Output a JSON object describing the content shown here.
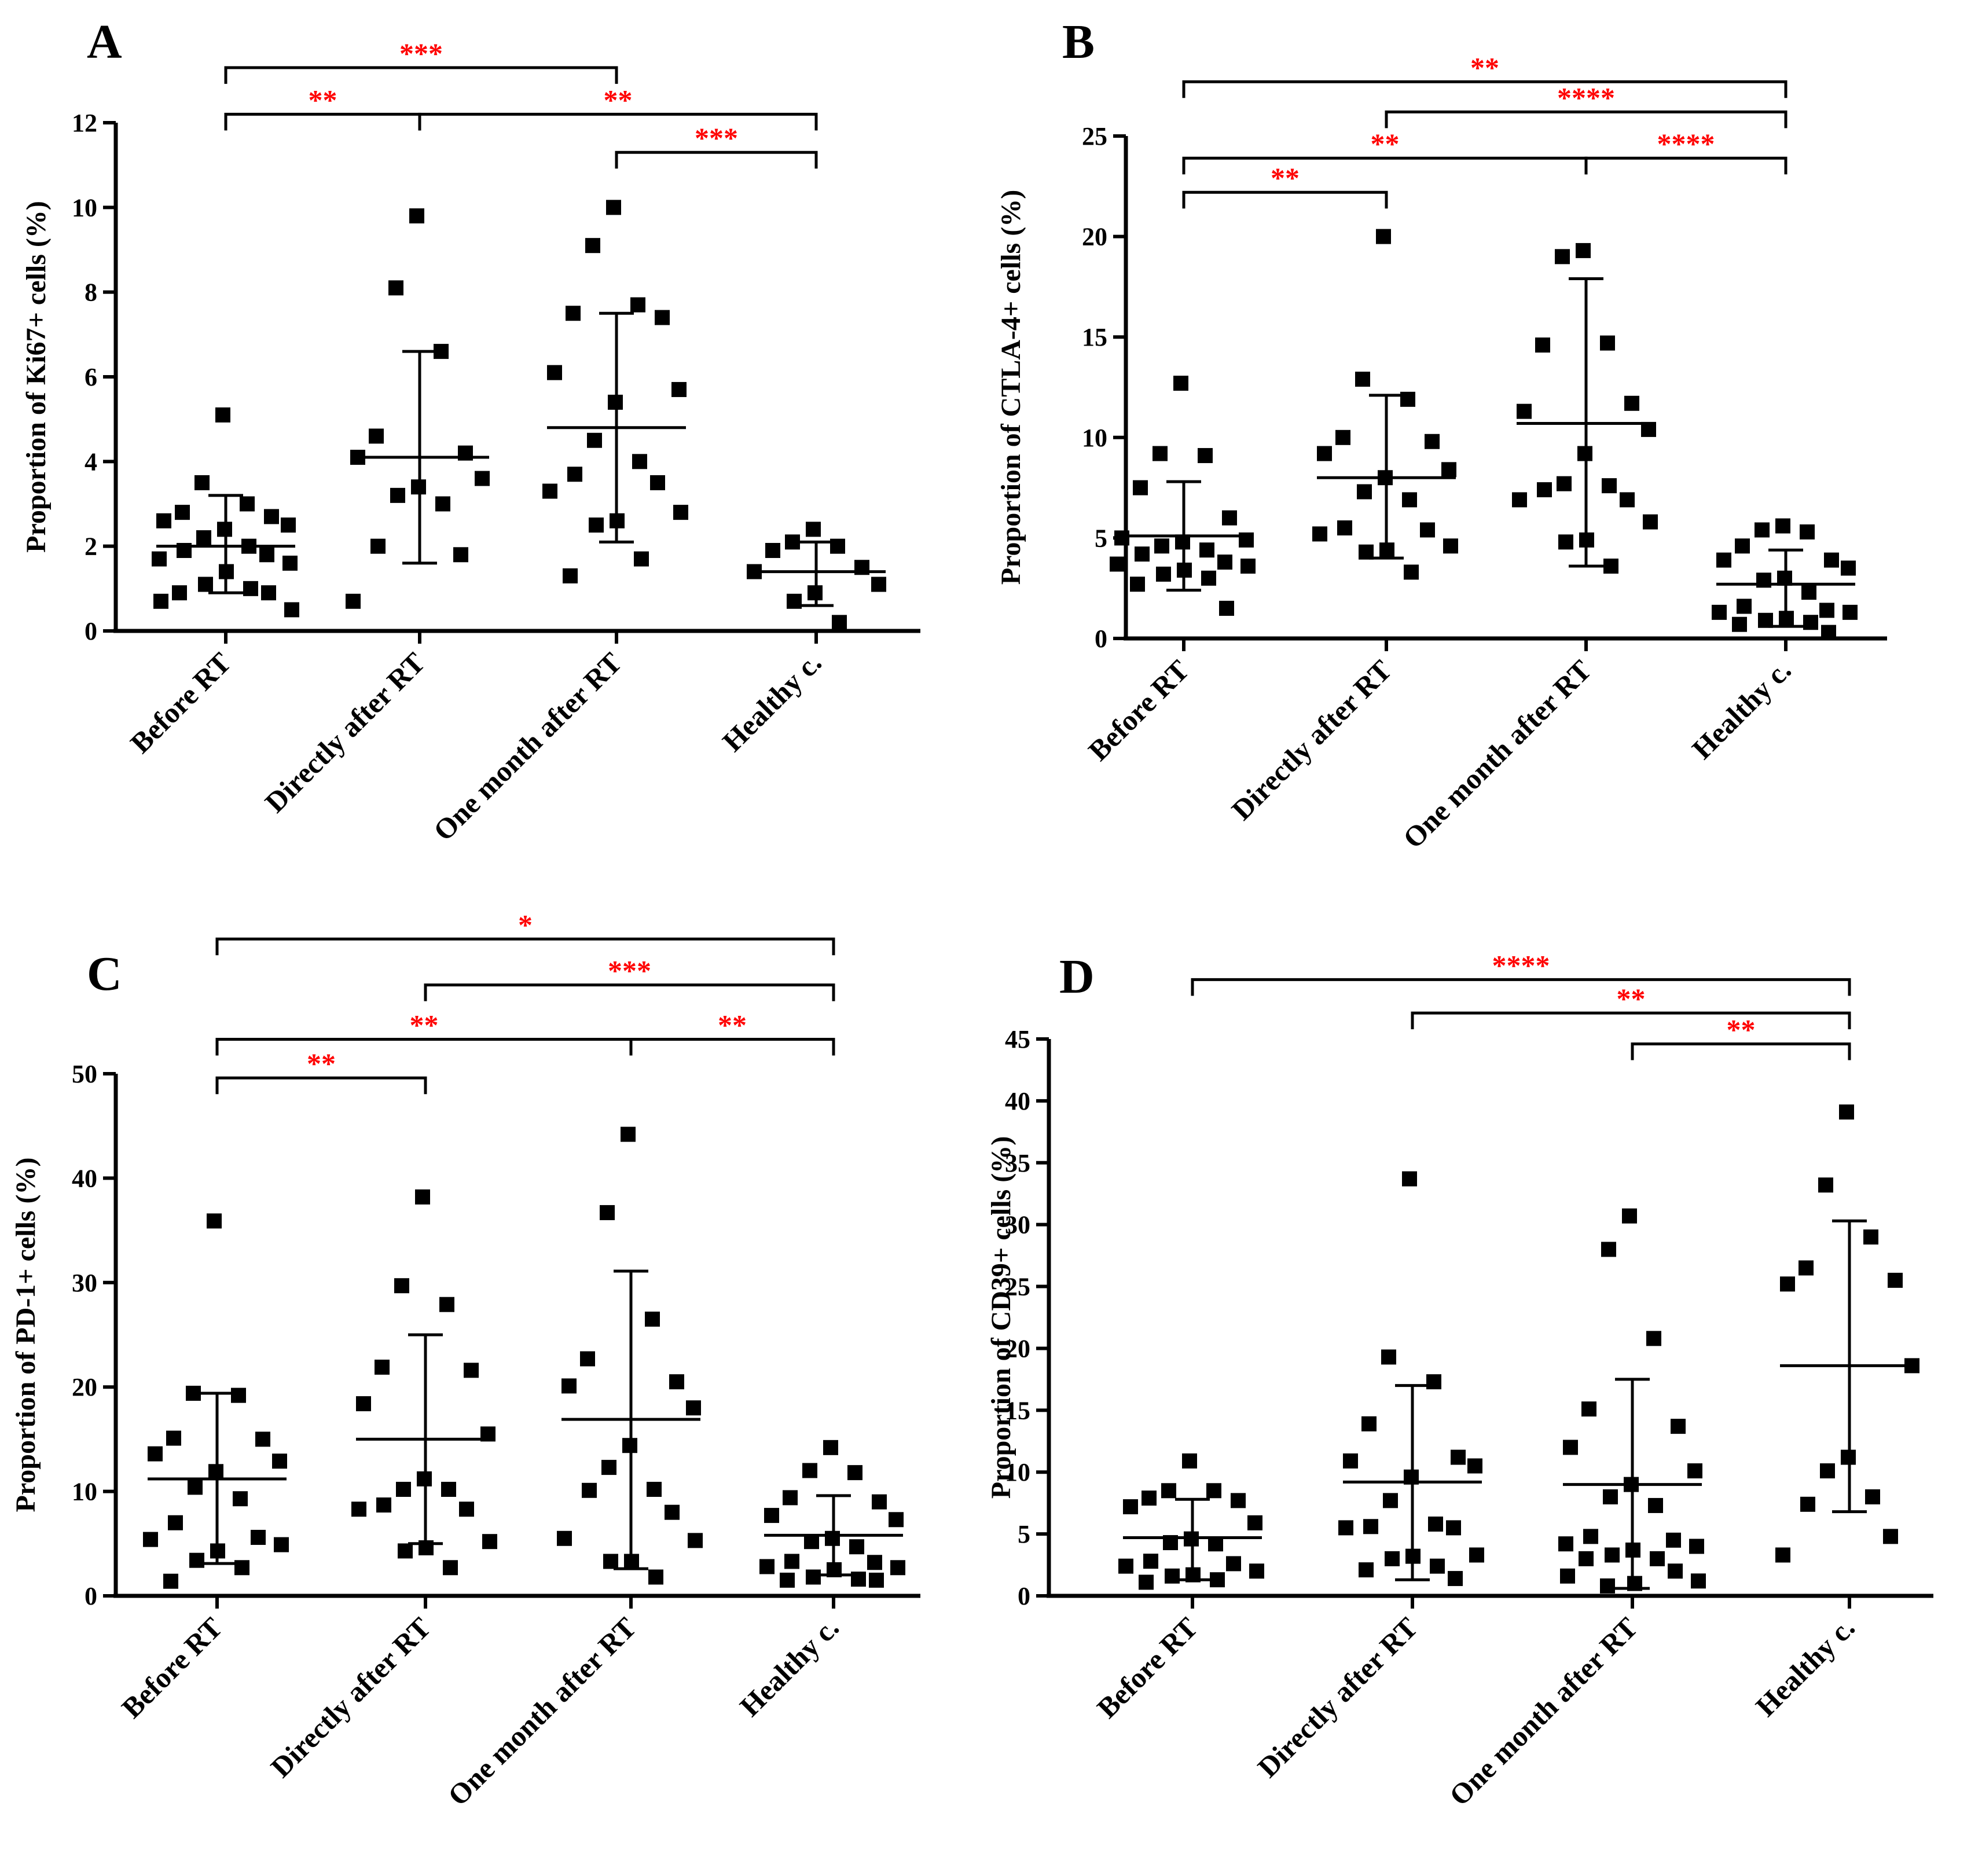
{
  "colors": {
    "axis": "#000000",
    "points": "#000000",
    "significance": "#ff0000"
  },
  "chart_data": [
    {
      "type": "scatter",
      "panel": "A",
      "title": "",
      "xlabel": "",
      "ylabel": "Proportion of Ki67+ cells (%)",
      "ylim": [
        0,
        12
      ],
      "yticks": [
        0,
        2,
        4,
        6,
        8,
        10,
        12
      ],
      "categories": [
        "Before RT",
        "Directly after RT",
        "One month after RT",
        "Healthy c."
      ],
      "series": [
        {
          "name": "Before RT",
          "mean": 2.0,
          "sd_low": 0.9,
          "sd_high": 3.2,
          "values": [
            5.1,
            3.5,
            3.0,
            2.8,
            2.7,
            2.6,
            2.5,
            2.4,
            2.2,
            2.0,
            1.9,
            1.8,
            1.7,
            1.6,
            1.4,
            1.1,
            1.0,
            0.9,
            0.9,
            0.7,
            0.5
          ]
        },
        {
          "name": "Directly after RT",
          "mean": 4.1,
          "sd_low": 1.6,
          "sd_high": 6.6,
          "values": [
            9.8,
            8.1,
            6.6,
            4.6,
            4.2,
            4.1,
            3.6,
            3.4,
            3.2,
            3.0,
            2.0,
            1.8,
            0.7
          ]
        },
        {
          "name": "One month after RT",
          "mean": 4.8,
          "sd_low": 2.1,
          "sd_high": 7.5,
          "values": [
            10.0,
            9.1,
            7.7,
            7.5,
            7.4,
            6.1,
            5.7,
            5.4,
            4.5,
            4.0,
            3.7,
            3.5,
            3.3,
            2.8,
            2.6,
            2.5,
            1.7,
            1.3
          ]
        },
        {
          "name": "Healthy c.",
          "mean": 1.4,
          "sd_low": 0.6,
          "sd_high": 2.1,
          "values": [
            2.4,
            2.1,
            2.0,
            1.9,
            1.5,
            1.4,
            1.1,
            0.9,
            0.7,
            0.2
          ]
        }
      ],
      "significance": [
        {
          "from": 0,
          "to": 2,
          "label": "***",
          "y": 13.3
        },
        {
          "from": 0,
          "to": 1,
          "label": "**",
          "y": 12.2
        },
        {
          "from": 1,
          "to": 3,
          "label": "**",
          "y": 12.2
        },
        {
          "from": 2,
          "to": 3,
          "label": "***",
          "y": 11.3
        }
      ]
    },
    {
      "type": "scatter",
      "panel": "B",
      "title": "",
      "xlabel": "",
      "ylabel": "Proportion of CTLA-4+ cells (%)",
      "ylim": [
        0,
        25
      ],
      "yticks": [
        0,
        5,
        10,
        15,
        20,
        25
      ],
      "categories": [
        "Before RT",
        "Directly after RT",
        "One month after RT",
        "Healthy c."
      ],
      "series": [
        {
          "name": "Before RT",
          "mean": 5.1,
          "sd_low": 2.4,
          "sd_high": 7.8,
          "values": [
            12.7,
            9.2,
            9.1,
            7.5,
            6.0,
            5.0,
            4.9,
            4.8,
            4.6,
            4.4,
            4.2,
            3.8,
            3.7,
            3.6,
            3.4,
            3.2,
            3.0,
            2.7,
            1.5
          ]
        },
        {
          "name": "Directly after RT",
          "mean": 8.0,
          "sd_low": 4.0,
          "sd_high": 12.1,
          "values": [
            20.0,
            12.9,
            11.9,
            10.0,
            9.8,
            9.2,
            8.4,
            8.0,
            7.3,
            6.9,
            5.5,
            5.4,
            5.2,
            4.6,
            4.4,
            4.3,
            3.3
          ]
        },
        {
          "name": "One month after RT",
          "mean": 10.7,
          "sd_low": 3.6,
          "sd_high": 17.9,
          "values": [
            19.3,
            19.0,
            14.7,
            14.6,
            11.7,
            11.3,
            10.4,
            9.2,
            7.7,
            7.6,
            7.4,
            6.9,
            6.9,
            5.8,
            4.9,
            4.8,
            3.6
          ]
        },
        {
          "name": "Healthy c.",
          "mean": 2.7,
          "sd_low": 0.6,
          "sd_high": 4.4,
          "values": [
            5.6,
            5.4,
            5.3,
            4.6,
            3.9,
            3.9,
            3.5,
            3.0,
            2.9,
            2.3,
            1.6,
            1.4,
            1.3,
            1.3,
            1.0,
            0.9,
            0.8,
            0.7,
            0.3
          ]
        }
      ],
      "significance": [
        {
          "from": 0,
          "to": 3,
          "label": "**",
          "y": 27.7
        },
        {
          "from": 1,
          "to": 3,
          "label": "****",
          "y": 26.2
        },
        {
          "from": 0,
          "to": 2,
          "label": "**",
          "y": 23.9
        },
        {
          "from": 2,
          "to": 3,
          "label": "****",
          "y": 23.9
        },
        {
          "from": 0,
          "to": 1,
          "label": "**",
          "y": 22.2
        }
      ]
    },
    {
      "type": "scatter",
      "panel": "C",
      "title": "",
      "xlabel": "",
      "ylabel": "Proportion of PD-1+ cells (%)",
      "ylim": [
        0,
        50
      ],
      "yticks": [
        0,
        10,
        20,
        30,
        40,
        50
      ],
      "categories": [
        "Before RT",
        "Directly after RT",
        "One month after RT",
        "Healthy c."
      ],
      "series": [
        {
          "name": "Before RT",
          "mean": 11.2,
          "sd_low": 3.1,
          "sd_high": 19.4,
          "values": [
            35.9,
            19.4,
            19.2,
            15.1,
            15.0,
            13.6,
            12.9,
            11.9,
            10.4,
            9.3,
            7.0,
            5.6,
            5.4,
            4.9,
            4.3,
            3.4,
            2.7,
            1.4
          ]
        },
        {
          "name": "Directly after RT",
          "mean": 15.0,
          "sd_low": 5.0,
          "sd_high": 25.0,
          "values": [
            38.2,
            29.7,
            27.9,
            21.9,
            21.6,
            18.4,
            15.5,
            11.2,
            10.2,
            10.2,
            8.7,
            8.3,
            8.3,
            5.2,
            4.6,
            4.3,
            2.7
          ]
        },
        {
          "name": "One month after RT",
          "mean": 16.9,
          "sd_low": 2.6,
          "sd_high": 31.1,
          "values": [
            44.2,
            36.7,
            26.5,
            22.7,
            20.5,
            20.1,
            18.0,
            14.4,
            12.3,
            10.2,
            10.1,
            8.0,
            5.5,
            5.3,
            3.3,
            3.3,
            1.8
          ]
        },
        {
          "name": "Healthy c.",
          "mean": 5.8,
          "sd_low": 2.0,
          "sd_high": 9.6,
          "values": [
            14.2,
            12.0,
            11.8,
            9.4,
            9.0,
            7.7,
            7.3,
            5.5,
            5.2,
            4.7,
            3.3,
            3.2,
            2.8,
            2.7,
            2.5,
            1.8,
            1.6,
            1.5,
            1.5
          ]
        }
      ],
      "significance": [
        {
          "from": 0,
          "to": 3,
          "label": "*",
          "y": 62.9
        },
        {
          "from": 1,
          "to": 3,
          "label": "***",
          "y": 58.5
        },
        {
          "from": 0,
          "to": 2,
          "label": "**",
          "y": 53.3
        },
        {
          "from": 2,
          "to": 3,
          "label": "**",
          "y": 53.3
        },
        {
          "from": 0,
          "to": 1,
          "label": "**",
          "y": 49.6
        }
      ]
    },
    {
      "type": "scatter",
      "panel": "D",
      "title": "",
      "xlabel": "",
      "ylabel": "Proportion of CD39+ cells (%)",
      "ylim": [
        0,
        45
      ],
      "yticks": [
        0,
        5,
        10,
        15,
        20,
        25,
        30,
        35,
        40,
        45
      ],
      "categories": [
        "Before RT",
        "Directly after RT",
        "One month after RT",
        "Healthy c."
      ],
      "series": [
        {
          "name": "Before RT",
          "mean": 4.7,
          "sd_low": 1.3,
          "sd_high": 7.8,
          "values": [
            10.9,
            8.5,
            8.5,
            7.9,
            7.7,
            7.2,
            5.9,
            4.6,
            4.3,
            4.2,
            2.8,
            2.6,
            2.4,
            2.0,
            1.7,
            1.6,
            1.3,
            1.1
          ]
        },
        {
          "name": "Directly after RT",
          "mean": 9.2,
          "sd_low": 1.3,
          "sd_high": 17.0,
          "values": [
            33.7,
            19.3,
            17.3,
            13.9,
            11.2,
            10.9,
            10.5,
            9.6,
            7.7,
            5.8,
            5.6,
            5.5,
            5.5,
            3.3,
            3.2,
            3.0,
            2.4,
            2.1,
            1.4
          ]
        },
        {
          "name": "One month after RT",
          "mean": 9.0,
          "sd_low": 0.6,
          "sd_high": 17.5,
          "values": [
            30.7,
            28.0,
            20.8,
            15.1,
            13.7,
            12.0,
            10.1,
            9.0,
            8.0,
            7.3,
            4.8,
            4.5,
            4.2,
            4.0,
            3.7,
            3.3,
            3.0,
            3.0,
            2.0,
            1.6,
            1.2,
            1.0,
            0.8
          ]
        },
        {
          "name": "Healthy c.",
          "mean": 18.6,
          "sd_low": 6.8,
          "sd_high": 30.3,
          "values": [
            39.1,
            33.2,
            29.0,
            26.5,
            25.5,
            25.2,
            18.6,
            11.2,
            10.1,
            8.0,
            7.4,
            4.8,
            3.3
          ]
        }
      ],
      "significance": [
        {
          "from": 0,
          "to": 3,
          "label": "****",
          "y": 49.8
        },
        {
          "from": 1,
          "to": 3,
          "label": "**",
          "y": 47.1
        },
        {
          "from": 2,
          "to": 3,
          "label": "**",
          "y": 44.6
        }
      ]
    }
  ]
}
